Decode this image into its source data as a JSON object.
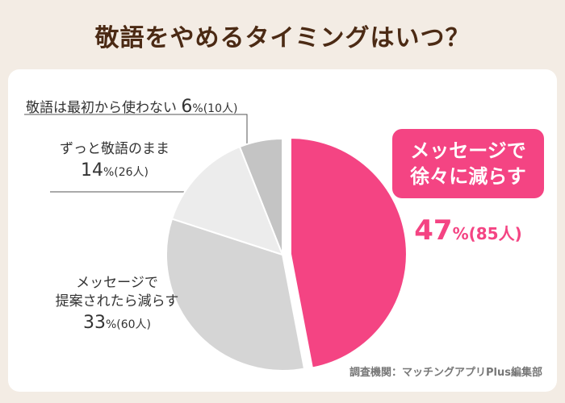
{
  "title": "敬語をやめるタイミングはいつ？",
  "source": "調査機関：マッチングアプリPlus編集部",
  "chart_data": {
    "type": "pie",
    "title": "敬語をやめるタイミングはいつ？",
    "slices": [
      {
        "label": "メッセージで徐々に減らす",
        "value": 47,
        "count": 85,
        "pct_text": "47",
        "count_text": "(85人)",
        "color": "#f44483"
      },
      {
        "label": "提案されたら減らす",
        "label_line1": "メッセージで",
        "label_line2": "提案されたら減らす",
        "value": 33,
        "count": 60,
        "pct_text": "33",
        "count_text": "(60人)",
        "color": "#d5d5d5"
      },
      {
        "label": "ずっと敬語のまま",
        "value": 14,
        "count": 26,
        "pct_text": "14",
        "count_text": "(26人)",
        "color": "#ececec"
      },
      {
        "label": "敬語は最初から使わない",
        "value": 6,
        "count": 10,
        "pct_text": "6",
        "count_text": "(10人)",
        "color": "#c4c4c4"
      }
    ],
    "unit": "%",
    "highlight_line1": "メッセージで",
    "highlight_line2": "徐々に減らす"
  }
}
